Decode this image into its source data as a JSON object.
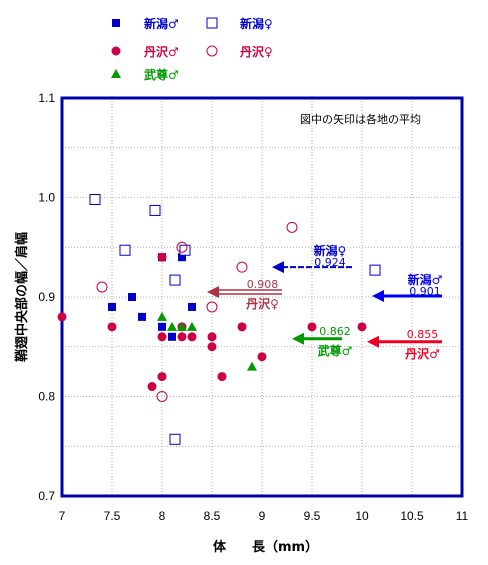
{
  "chart_data": {
    "type": "scatter",
    "xlabel": "体　　長（mm）",
    "ylabel": "鞘翅中央部の幅／肩幅",
    "xlim": [
      7,
      11
    ],
    "ylim": [
      0.7,
      1.1
    ],
    "xticks": [
      "7",
      "7.5",
      "8",
      "8.5",
      "9",
      "9.5",
      "10",
      "10.5",
      "11"
    ],
    "yticks": [
      "0.7",
      "0.8",
      "0.9",
      "1.0",
      "1.1"
    ],
    "grid": true,
    "annotation": "図中の矢印は各地の平均",
    "legend": [
      {
        "label": "新潟♂",
        "marker": "square-filled",
        "color": "#0000cc"
      },
      {
        "label": "新潟♀",
        "marker": "square-open",
        "color": "#0000cc"
      },
      {
        "label": "丹沢♂",
        "marker": "circle-filled",
        "color": "#cc0044"
      },
      {
        "label": "丹沢♀",
        "marker": "circle-open",
        "color": "#cc0044"
      },
      {
        "label": "武尊♂",
        "marker": "triangle-filled",
        "color": "#009900"
      }
    ],
    "series": [
      {
        "name": "新潟♂",
        "marker": "square-filled",
        "color": "#0000cc",
        "points": [
          [
            7.5,
            0.89
          ],
          [
            7.7,
            0.9
          ],
          [
            7.8,
            0.88
          ],
          [
            8.0,
            0.94
          ],
          [
            8.2,
            0.94
          ],
          [
            8.3,
            0.89
          ],
          [
            8.0,
            0.87
          ],
          [
            8.1,
            0.86
          ]
        ]
      },
      {
        "name": "新潟♀",
        "marker": "square-open",
        "color": "#0000cc",
        "points": [
          [
            7.33,
            0.998
          ],
          [
            7.63,
            0.947
          ],
          [
            7.93,
            0.987
          ],
          [
            8.13,
            0.917
          ],
          [
            8.23,
            0.947
          ],
          [
            8.13,
            0.757
          ],
          [
            10.13,
            0.927
          ]
        ]
      },
      {
        "name": "丹沢♂",
        "marker": "circle-filled",
        "color": "#cc0044",
        "points": [
          [
            7.0,
            0.88
          ],
          [
            7.5,
            0.87
          ],
          [
            7.9,
            0.81
          ],
          [
            8.0,
            0.82
          ],
          [
            8.0,
            0.86
          ],
          [
            8.2,
            0.87
          ],
          [
            8.2,
            0.86
          ],
          [
            8.3,
            0.86
          ],
          [
            8.5,
            0.86
          ],
          [
            8.5,
            0.85
          ],
          [
            8.6,
            0.82
          ],
          [
            8.8,
            0.87
          ],
          [
            9.0,
            0.84
          ],
          [
            9.5,
            0.87
          ],
          [
            10.0,
            0.87
          ],
          [
            8.0,
            0.94
          ]
        ]
      },
      {
        "name": "丹沢♀",
        "marker": "circle-open",
        "color": "#cc0044",
        "points": [
          [
            7.4,
            0.91
          ],
          [
            8.0,
            0.8
          ],
          [
            8.2,
            0.95
          ],
          [
            8.5,
            0.89
          ],
          [
            8.8,
            0.93
          ],
          [
            9.3,
            0.97
          ]
        ]
      },
      {
        "name": "武尊♂",
        "marker": "triangle-filled",
        "color": "#009900",
        "points": [
          [
            8.0,
            0.88
          ],
          [
            8.1,
            0.87
          ],
          [
            8.2,
            0.87
          ],
          [
            8.3,
            0.87
          ],
          [
            8.9,
            0.83
          ]
        ]
      }
    ],
    "means": [
      {
        "label": "新潟♀",
        "value": "0.924",
        "y": 0.93,
        "x_from": 9.9,
        "x_to": 9.1,
        "color": "#0000cc",
        "style": "dashed"
      },
      {
        "label": "新潟♂",
        "value": "0.901",
        "y": 0.901,
        "x_from": 10.8,
        "x_to": 10.1,
        "color": "#0000ee",
        "style": "solid"
      },
      {
        "label": "丹沢♀",
        "value": "0.908",
        "y": 0.905,
        "x_from": 9.2,
        "x_to": 8.45,
        "color": "#aa3344",
        "style": "double"
      },
      {
        "label": "丹沢♂",
        "value": "0.855",
        "y": 0.855,
        "x_from": 10.8,
        "x_to": 10.05,
        "color": "#ee0022",
        "style": "solid"
      },
      {
        "label": "武尊♂",
        "value": "0.862",
        "y": 0.858,
        "x_from": 9.8,
        "x_to": 9.3,
        "color": "#009900",
        "style": "solid"
      }
    ]
  }
}
